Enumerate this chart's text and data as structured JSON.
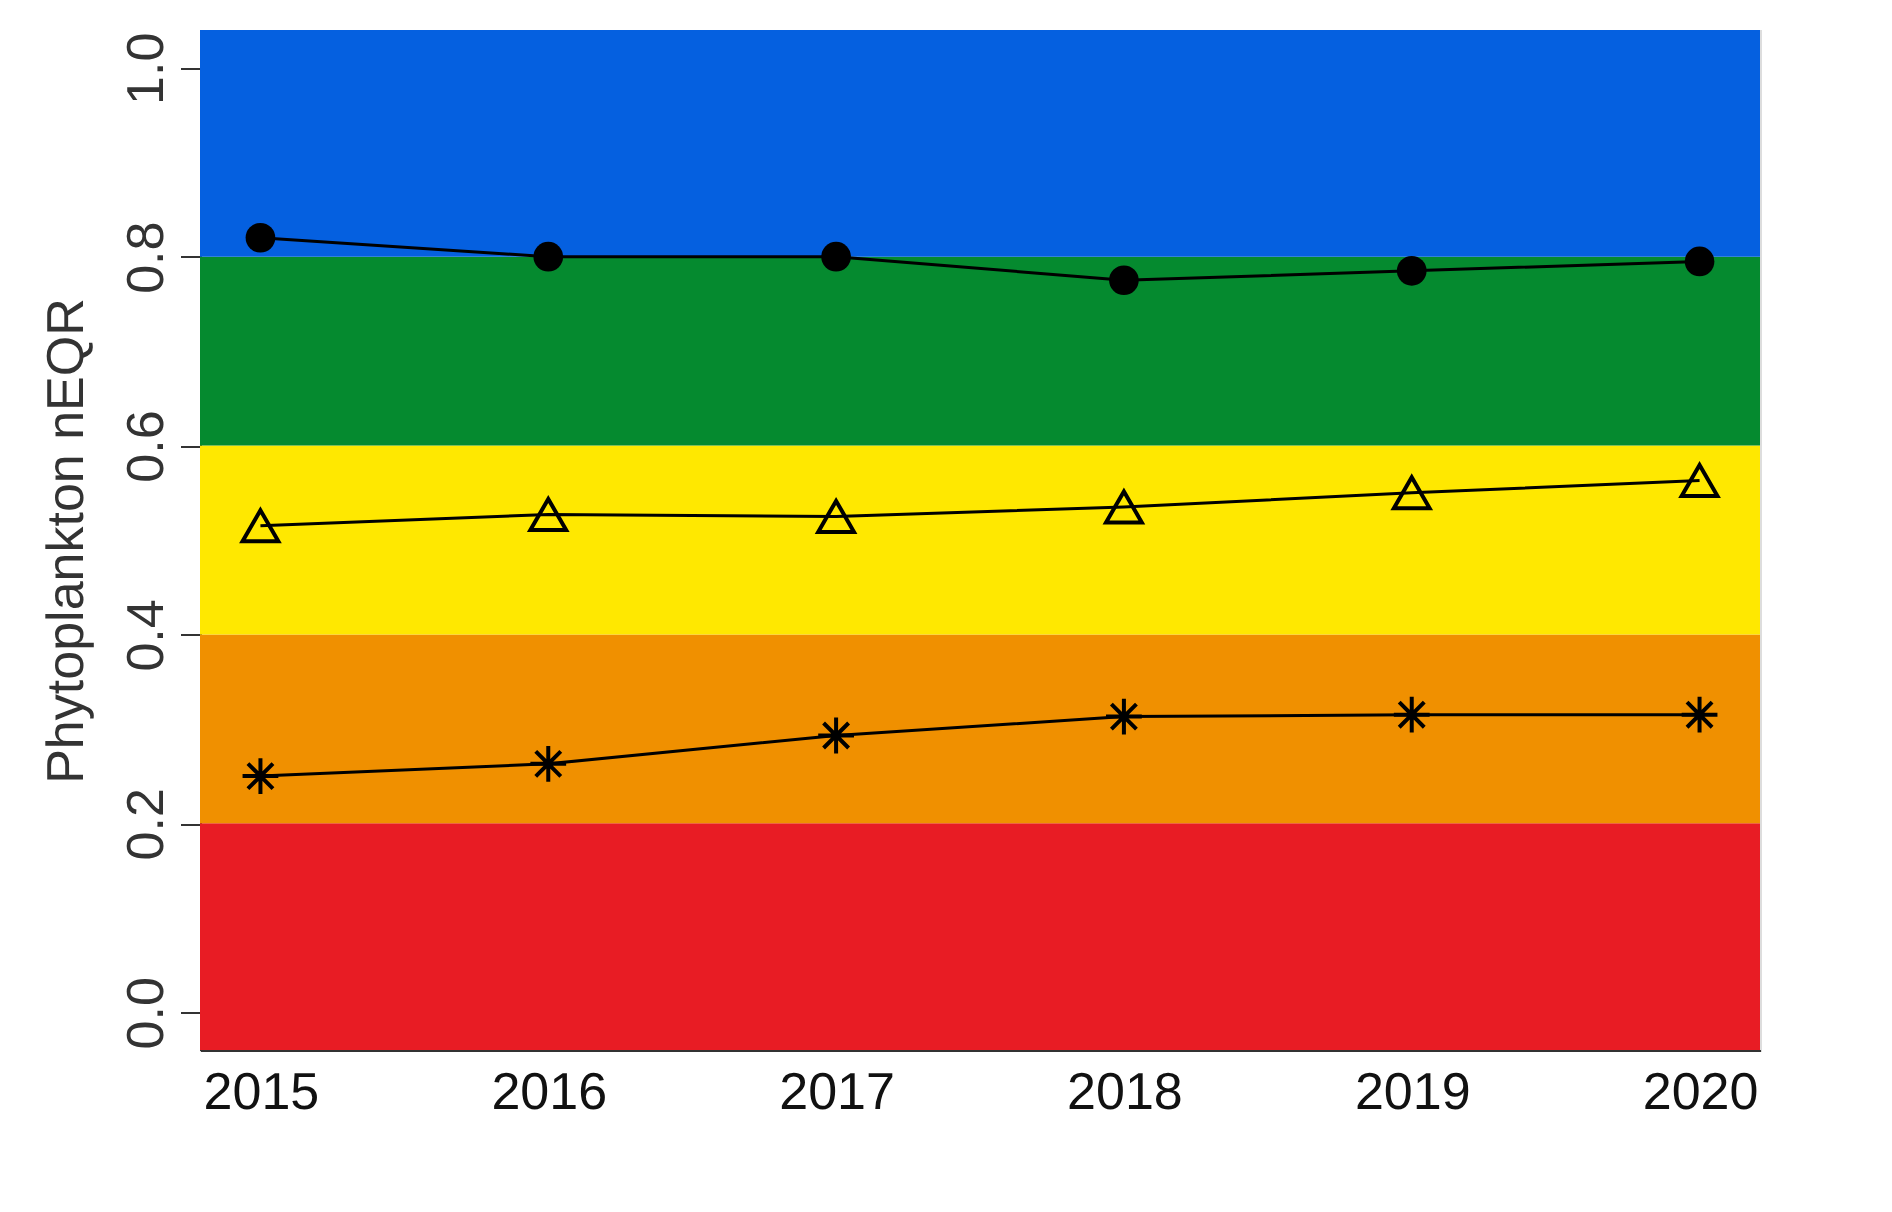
{
  "chart_data": {
    "type": "line",
    "ylabel": "Phytoplankton nEQR",
    "categories": [
      "2015",
      "2016",
      "2017",
      "2018",
      "2019",
      "2020"
    ],
    "series": [
      {
        "color": "#000000",
        "marker": "circle",
        "values": [
          0.82,
          0.8,
          0.8,
          0.775,
          0.785,
          0.795
        ]
      },
      {
        "color": "#000000",
        "marker": "triangle",
        "values": [
          0.515,
          0.527,
          0.525,
          0.535,
          0.55,
          0.563
        ]
      },
      {
        "color": "#000000",
        "marker": "cross",
        "values": [
          0.25,
          0.263,
          0.293,
          0.313,
          0.315,
          0.315
        ]
      }
    ],
    "ylim": [
      -0.04,
      1.04
    ],
    "yticks": [
      {
        "value": 0,
        "label": "0.0"
      },
      {
        "value": 0.2,
        "label": "0.2"
      },
      {
        "value": 0.4,
        "label": "0.4"
      },
      {
        "value": 0.6,
        "label": "0.6"
      },
      {
        "value": 0.8,
        "label": "0.8"
      },
      {
        "value": 1,
        "label": "1.0"
      }
    ],
    "bands": [
      {
        "axis": "y",
        "from": -0.04,
        "to": 0.2,
        "color": "#e81c24"
      },
      {
        "axis": "y",
        "from": 0.2,
        "to": 0.4,
        "color": "#f09000"
      },
      {
        "axis": "y",
        "from": 0.4,
        "to": 0.6,
        "color": "#ffe800"
      },
      {
        "axis": "y",
        "from": 0.6,
        "to": 0.8,
        "color": "#058a2f"
      },
      {
        "axis": "y",
        "from": 0.8,
        "to": 1.04,
        "color": "#0560e0"
      }
    ],
    "grid": false,
    "line_style": "solid"
  }
}
